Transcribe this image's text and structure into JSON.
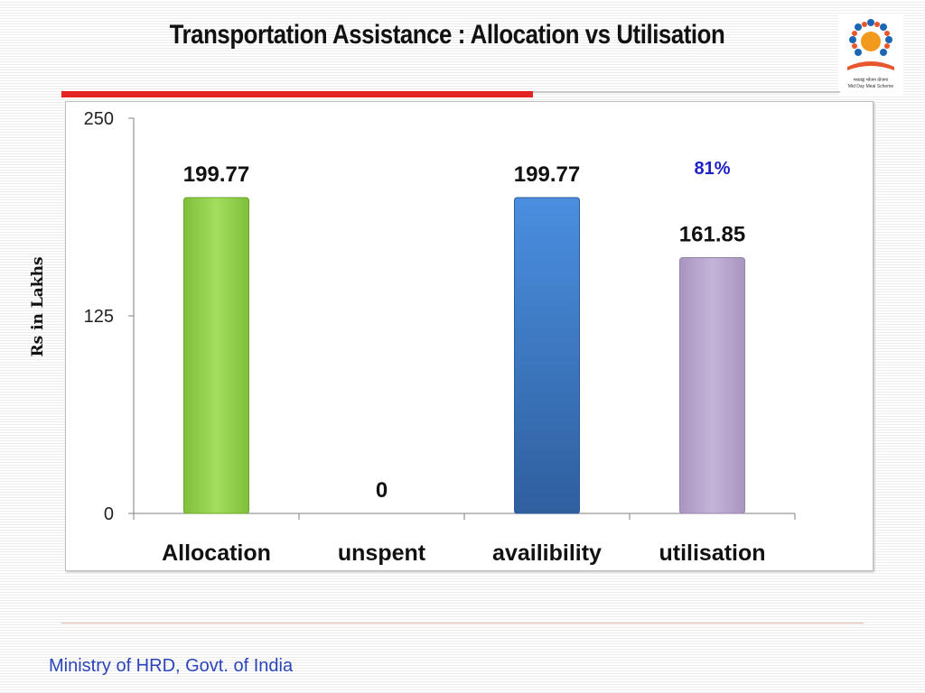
{
  "slide": {
    "title": "Transportation Assistance : Allocation vs Utilisation",
    "footer": "Ministry of HRD, Govt. of India",
    "logo_text_1": "मध्याह्न भोजन योजना",
    "logo_text_2": "Mid Day Meal Scheme"
  },
  "chart_data": {
    "type": "bar",
    "title": "",
    "xlabel": "",
    "ylabel": "Rs in Lakhs",
    "categories": [
      "Allocation",
      "unspent",
      "availibility",
      "utilisation"
    ],
    "values": [
      199.77,
      0,
      199.77,
      161.85
    ],
    "value_labels": [
      "199.77",
      "0",
      "199.77",
      "161.85"
    ],
    "bar_colors": [
      "#92d050",
      "#92d050",
      "#3a7bd5",
      "#b3a2c7"
    ],
    "ylim": [
      0,
      250
    ],
    "yticks": [
      0,
      125,
      250
    ],
    "grid": false,
    "legend": "none",
    "annotation": {
      "category": "utilisation",
      "text": "81%",
      "color": "#1f1fc8"
    }
  }
}
